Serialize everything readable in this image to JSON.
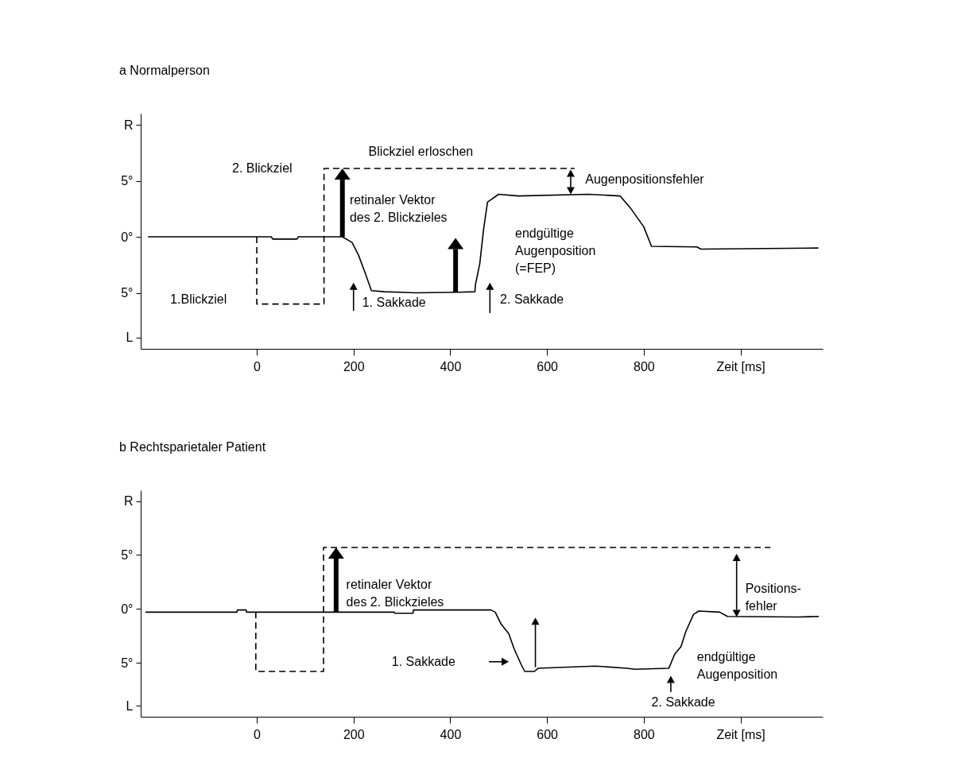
{
  "chart_data": [
    {
      "type": "line",
      "title": "a  Normalperson",
      "xlim": [
        -240,
        1170
      ],
      "ylim": [
        -10,
        11
      ],
      "xticks": [
        0,
        200,
        400,
        600,
        800,
        {
          "value": 1000,
          "label": "Zeit [ms]"
        }
      ],
      "yticks": [
        {
          "value": 10,
          "label": "R"
        },
        {
          "value": 5,
          "label": "5°"
        },
        {
          "value": 0,
          "label": "0°"
        },
        {
          "value": -5,
          "label": "5°"
        },
        {
          "value": -9,
          "label": "L"
        }
      ],
      "grid": false,
      "series": [
        {
          "color": "#000000",
          "line_style": "solid",
          "x": [
            -225,
            30,
            33,
            83,
            86,
            177,
            197,
            210,
            223,
            237,
            264,
            330,
            418,
            451,
            452,
            461,
            469,
            477,
            500,
            541,
            685,
            751,
            772,
            800,
            816,
            910,
            918,
            1161
          ],
          "values": [
            0,
            0,
            -0.2,
            -0.2,
            0,
            0,
            -0.5,
            -1.6,
            -3.1,
            -4.8,
            -4.9,
            -5.0,
            -4.95,
            -4.9,
            -4.3,
            -2.4,
            0.7,
            3.1,
            3.8,
            3.65,
            3.8,
            3.65,
            2.6,
            0.9,
            -0.85,
            -0.9,
            -1.1,
            -1.0
          ]
        },
        {
          "color": "#000000",
          "line_style": "dashed",
          "x": [
            0,
            0,
            139,
            139,
            657
          ],
          "values": [
            0,
            -6.0,
            -6.0,
            6.1,
            6.1
          ]
        }
      ],
      "annotations": [
        "Blickziel erloschen",
        "2. Blickziel",
        {
          "text": "retinaler Vektor\ndes 2. Blickzieles",
          "x": 177,
          "y": 6.1
        },
        "Augenpositionsfehler",
        "endgültige\nAugenposition\n(=FEP)",
        "1.Blickziel",
        "1. Sakkade",
        "2. Sakkade"
      ]
    },
    {
      "type": "line",
      "title": "b  Rechtsparietaler Patient",
      "xlim": [
        -240,
        1170
      ],
      "ylim": [
        -10,
        11
      ],
      "xticks": [
        0,
        200,
        400,
        600,
        800,
        {
          "value": 1000,
          "label": "Zeit [ms]"
        }
      ],
      "yticks": [
        {
          "value": 10,
          "label": "R"
        },
        {
          "value": 5,
          "label": "5°"
        },
        {
          "value": 0,
          "label": "0°"
        },
        {
          "value": -5,
          "label": "5°"
        },
        {
          "value": -9,
          "label": "L"
        }
      ],
      "grid": false,
      "series": [
        {
          "color": "#000000",
          "line_style": "solid",
          "x": [
            -230,
            -41,
            -40,
            -22,
            -21,
            284,
            285,
            323,
            324,
            377,
            484,
            493,
            505,
            521,
            532,
            546,
            554,
            574,
            582,
            700,
            765,
            782,
            852,
            864,
            877,
            887,
            903,
            914,
            957,
            973,
            1120,
            1162
          ],
          "values": [
            -0.3,
            -0.3,
            -0.1,
            -0.1,
            -0.3,
            -0.3,
            -0.4,
            -0.4,
            -0.1,
            -0.1,
            -0.1,
            -0.3,
            -1.4,
            -2.3,
            -3.7,
            -5.1,
            -5.8,
            -5.8,
            -5.5,
            -5.3,
            -5.5,
            -5.6,
            -5.5,
            -4.2,
            -3.5,
            -2.1,
            -0.5,
            -0.2,
            -0.3,
            -0.7,
            -0.75,
            -0.7
          ]
        },
        {
          "color": "#000000",
          "line_style": "dashed",
          "x": [
            -2,
            -2,
            138,
            138,
            1062
          ],
          "values": [
            -0.3,
            -5.8,
            -5.8,
            5.7,
            5.7
          ]
        }
      ],
      "annotations": [
        {
          "text": "retinaler Vektor\ndes 2. Blickzieles",
          "x": 164,
          "y": 5.7
        },
        "Positions-\nfehler",
        "1. Sakkade",
        "endgültige\nAugenposition",
        "2. Sakkade"
      ]
    }
  ]
}
